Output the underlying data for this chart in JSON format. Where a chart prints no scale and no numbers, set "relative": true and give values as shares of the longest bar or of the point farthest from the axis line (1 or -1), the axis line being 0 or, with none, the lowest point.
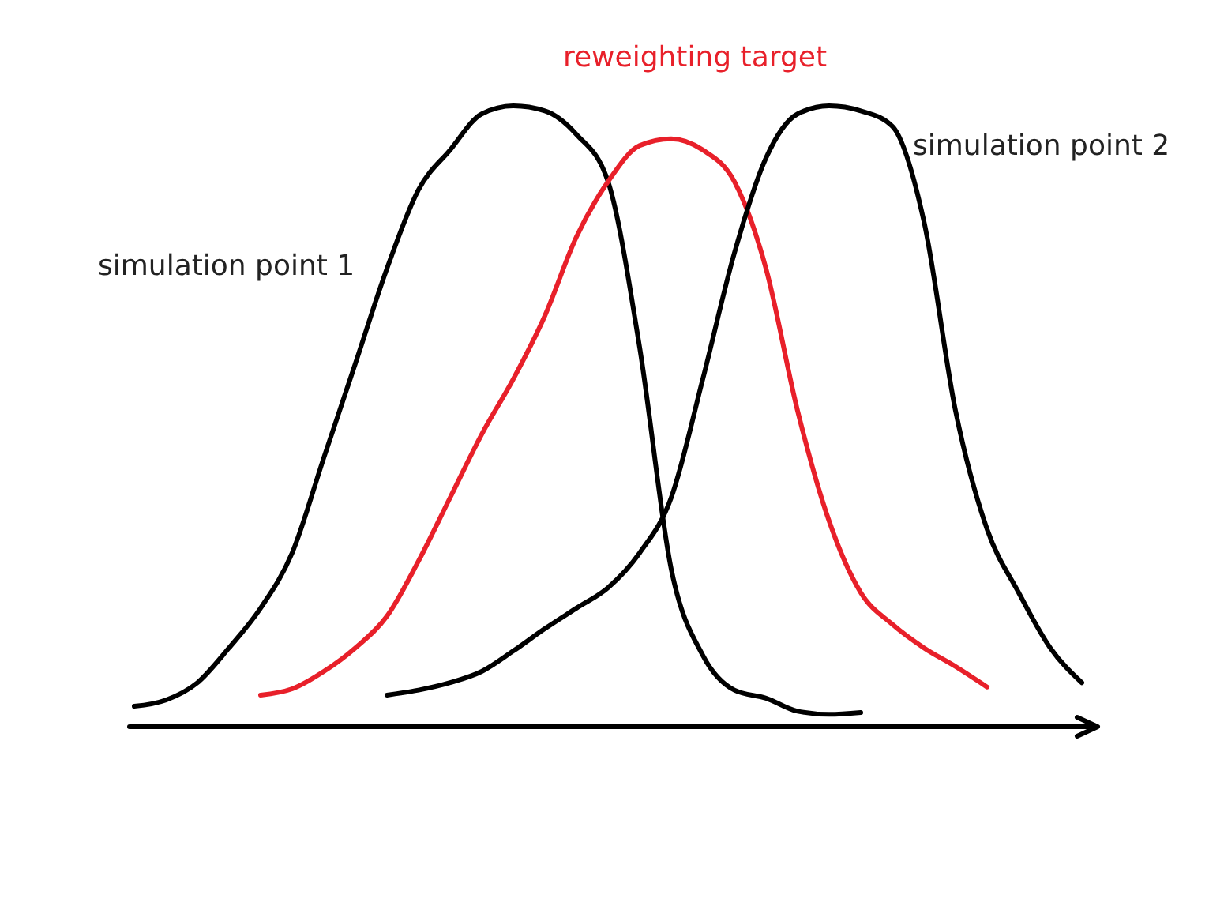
{
  "chart_data": {
    "type": "line",
    "relative": true,
    "marker": "none",
    "line_style": "solid",
    "categories": [
      null,
      null,
      null,
      null,
      null,
      null,
      null,
      null,
      null,
      null,
      null,
      null,
      null,
      null,
      null,
      null,
      null,
      null,
      null,
      null,
      null,
      null,
      null,
      null,
      null,
      null,
      null,
      null,
      null,
      null,
      null
    ],
    "series": [
      {
        "name": "simulation point 1",
        "color": "#000000",
        "values": [
          0.033,
          0.043,
          0.071,
          0.127,
          0.191,
          0.28,
          0.433,
          0.585,
          0.738,
          0.865,
          0.929,
          0.987,
          1,
          0.992,
          0.954,
          0.878,
          0.611,
          0.254,
          0.115,
          0.059,
          0.046,
          0.025,
          0.02,
          0.023,
          null,
          null,
          null,
          null,
          null,
          null,
          null
        ]
      },
      {
        "name": "reweighting target",
        "color": "#e8202a",
        "values": [
          null,
          null,
          null,
          null,
          0.051,
          0.061,
          0.089,
          0.127,
          0.178,
          0.267,
          0.369,
          0.471,
          0.56,
          0.662,
          0.789,
          0.878,
          0.936,
          0.947,
          0.929,
          0.878,
          0.738,
          0.509,
          0.331,
          0.216,
          0.165,
          0.127,
          0.097,
          0.064,
          null,
          null,
          null
        ]
      },
      {
        "name": "simulation point 2",
        "color": "#000000",
        "values": [
          null,
          null,
          null,
          null,
          null,
          null,
          null,
          null,
          0.051,
          0.059,
          0.071,
          0.089,
          0.122,
          0.158,
          0.191,
          0.224,
          0.28,
          0.369,
          0.56,
          0.763,
          0.916,
          0.987,
          1,
          0.992,
          0.967,
          0.814,
          0.509,
          0.318,
          0.216,
          0.127,
          0.071
        ]
      }
    ]
  }
}
